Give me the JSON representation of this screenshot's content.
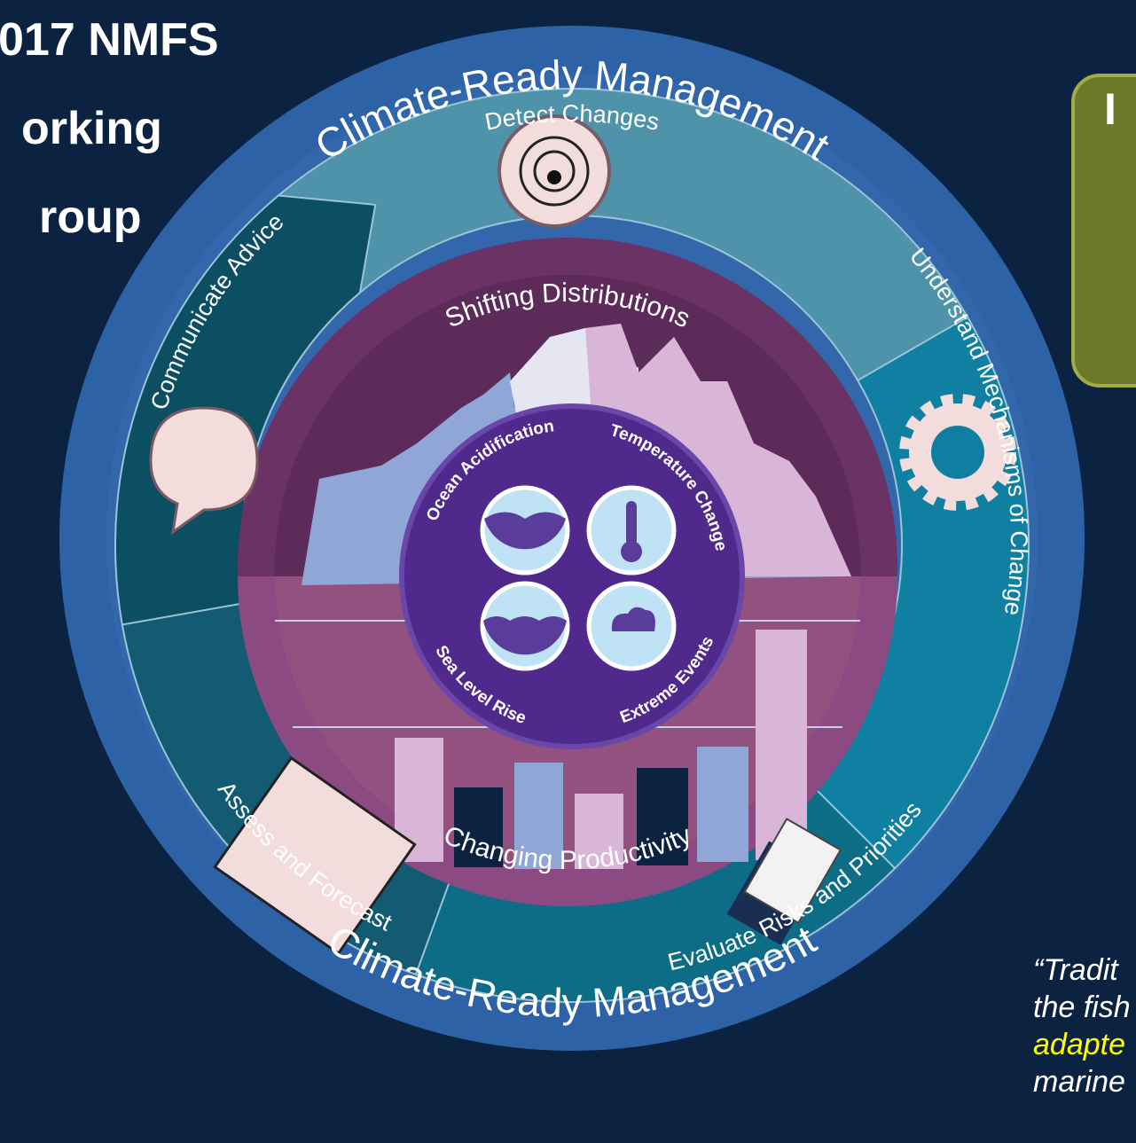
{
  "title_lines": [
    "017 NMFS",
    "orking",
    "roup"
  ],
  "ring": {
    "top_label": "Climate-Ready Management",
    "bottom_label": "Climate-Ready Management"
  },
  "steps": [
    "Detect Changes",
    "Understand Mechanisms of Change",
    "Evaluate Risks and Priorities",
    "Assess and Forecast",
    "Communicate Advice"
  ],
  "impacts": [
    "Shifting Distributions",
    "Changing Productivity"
  ],
  "drivers": [
    "Ocean Acidification",
    "Temperature Change",
    "Sea Level Rise",
    "Extreme Events"
  ],
  "callout": {
    "text": "I"
  },
  "quote": {
    "lines": [
      {
        "text": "“Tradit",
        "highlight": false
      },
      {
        "text": "the fish",
        "highlight": false
      },
      {
        "text": "adapte",
        "highlight": true
      },
      {
        "text": "marine",
        "highlight": false
      }
    ]
  }
}
